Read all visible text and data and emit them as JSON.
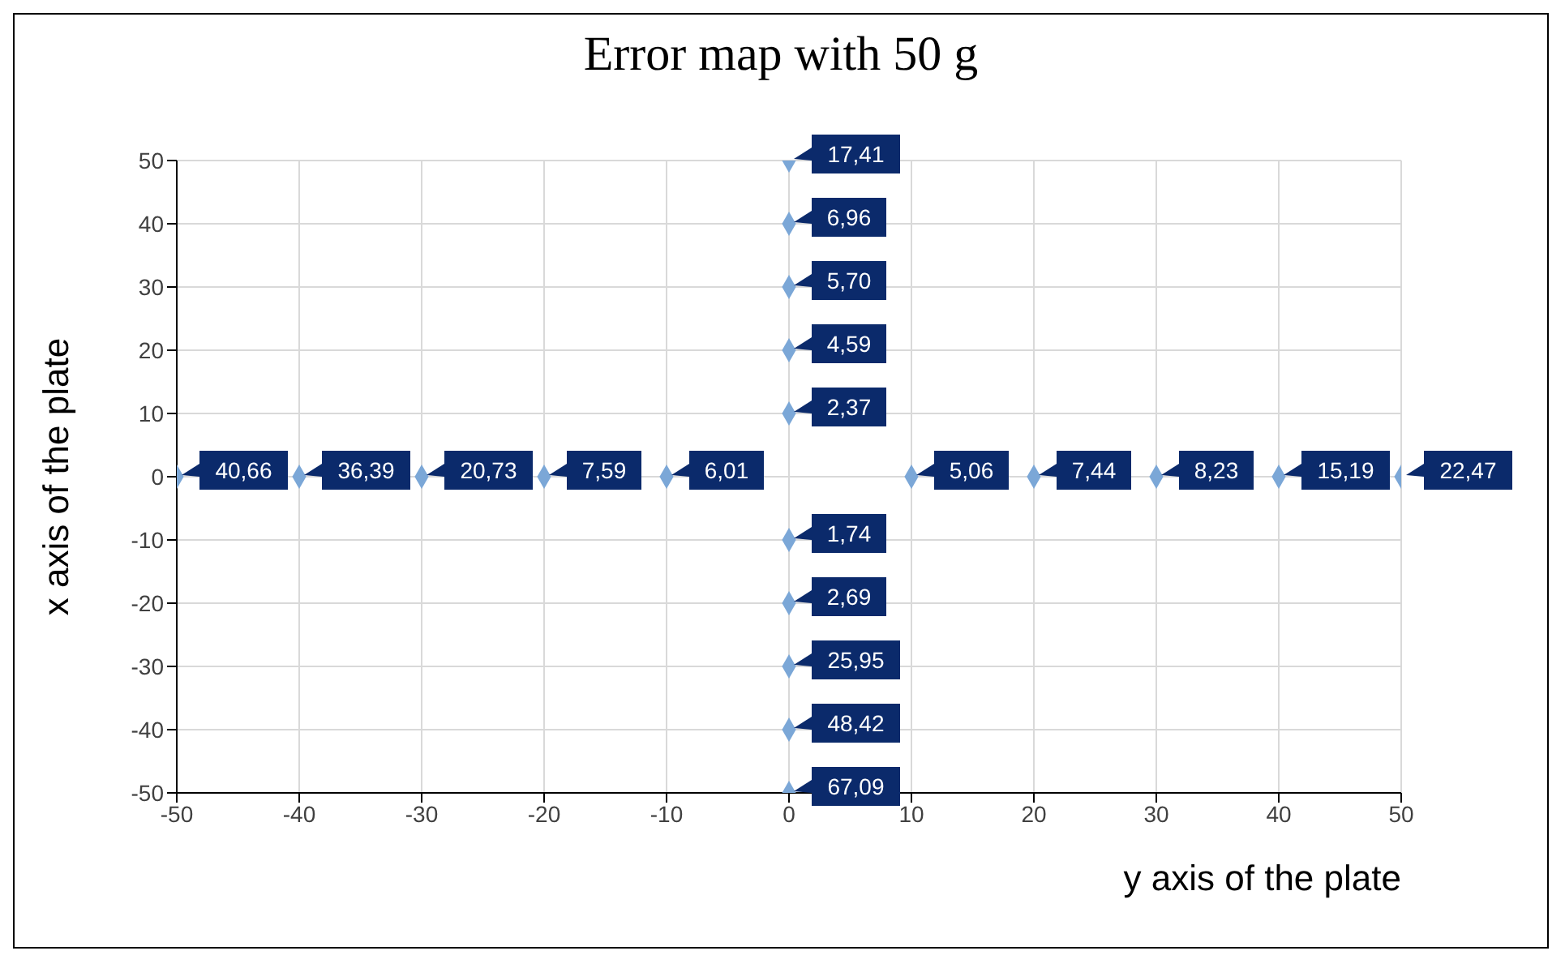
{
  "chart_data": {
    "type": "scatter",
    "title": "Error map with 50 g",
    "xlabel": "y axis of the plate",
    "ylabel": "x axis of the plate",
    "xlim": [
      -50,
      50
    ],
    "ylim": [
      -50,
      50
    ],
    "xticks": [
      -50,
      -40,
      -30,
      -20,
      -10,
      0,
      10,
      20,
      30,
      40,
      50
    ],
    "yticks": [
      -50,
      -40,
      -30,
      -20,
      -10,
      0,
      10,
      20,
      30,
      40,
      50
    ],
    "grid": true,
    "marker": "diamond",
    "series": [
      {
        "color": "#7ba7d7",
        "x": [
          -50,
          -40,
          -30,
          -20,
          -10,
          10,
          20,
          30,
          40,
          50,
          0,
          0,
          0,
          0,
          0,
          0,
          0,
          0,
          0,
          0
        ],
        "values": [
          0,
          0,
          0,
          0,
          0,
          0,
          0,
          0,
          0,
          0,
          50,
          40,
          30,
          20,
          10,
          -10,
          -20,
          -30,
          -40,
          -50
        ]
      }
    ],
    "annotations": [
      {
        "text": "40,66",
        "x": -50,
        "y": 0
      },
      {
        "text": "36,39",
        "x": -40,
        "y": 0
      },
      {
        "text": "20,73",
        "x": -30,
        "y": 0
      },
      {
        "text": "7,59",
        "x": -20,
        "y": 0
      },
      {
        "text": "6,01",
        "x": -10,
        "y": 0
      },
      {
        "text": "5,06",
        "x": 10,
        "y": 0
      },
      {
        "text": "7,44",
        "x": 20,
        "y": 0
      },
      {
        "text": "8,23",
        "x": 30,
        "y": 0
      },
      {
        "text": "15,19",
        "x": 40,
        "y": 0
      },
      {
        "text": "22,47",
        "x": 50,
        "y": 0
      },
      {
        "text": "17,41",
        "x": 0,
        "y": 50
      },
      {
        "text": "6,96",
        "x": 0,
        "y": 40
      },
      {
        "text": "5,70",
        "x": 0,
        "y": 30
      },
      {
        "text": "4,59",
        "x": 0,
        "y": 20
      },
      {
        "text": "2,37",
        "x": 0,
        "y": 10
      },
      {
        "text": "1,74",
        "x": 0,
        "y": -10
      },
      {
        "text": "2,69",
        "x": 0,
        "y": -20
      },
      {
        "text": "25,95",
        "x": 0,
        "y": -30
      },
      {
        "text": "48,42",
        "x": 0,
        "y": -40
      },
      {
        "text": "67,09",
        "x": 0,
        "y": -50
      }
    ]
  }
}
